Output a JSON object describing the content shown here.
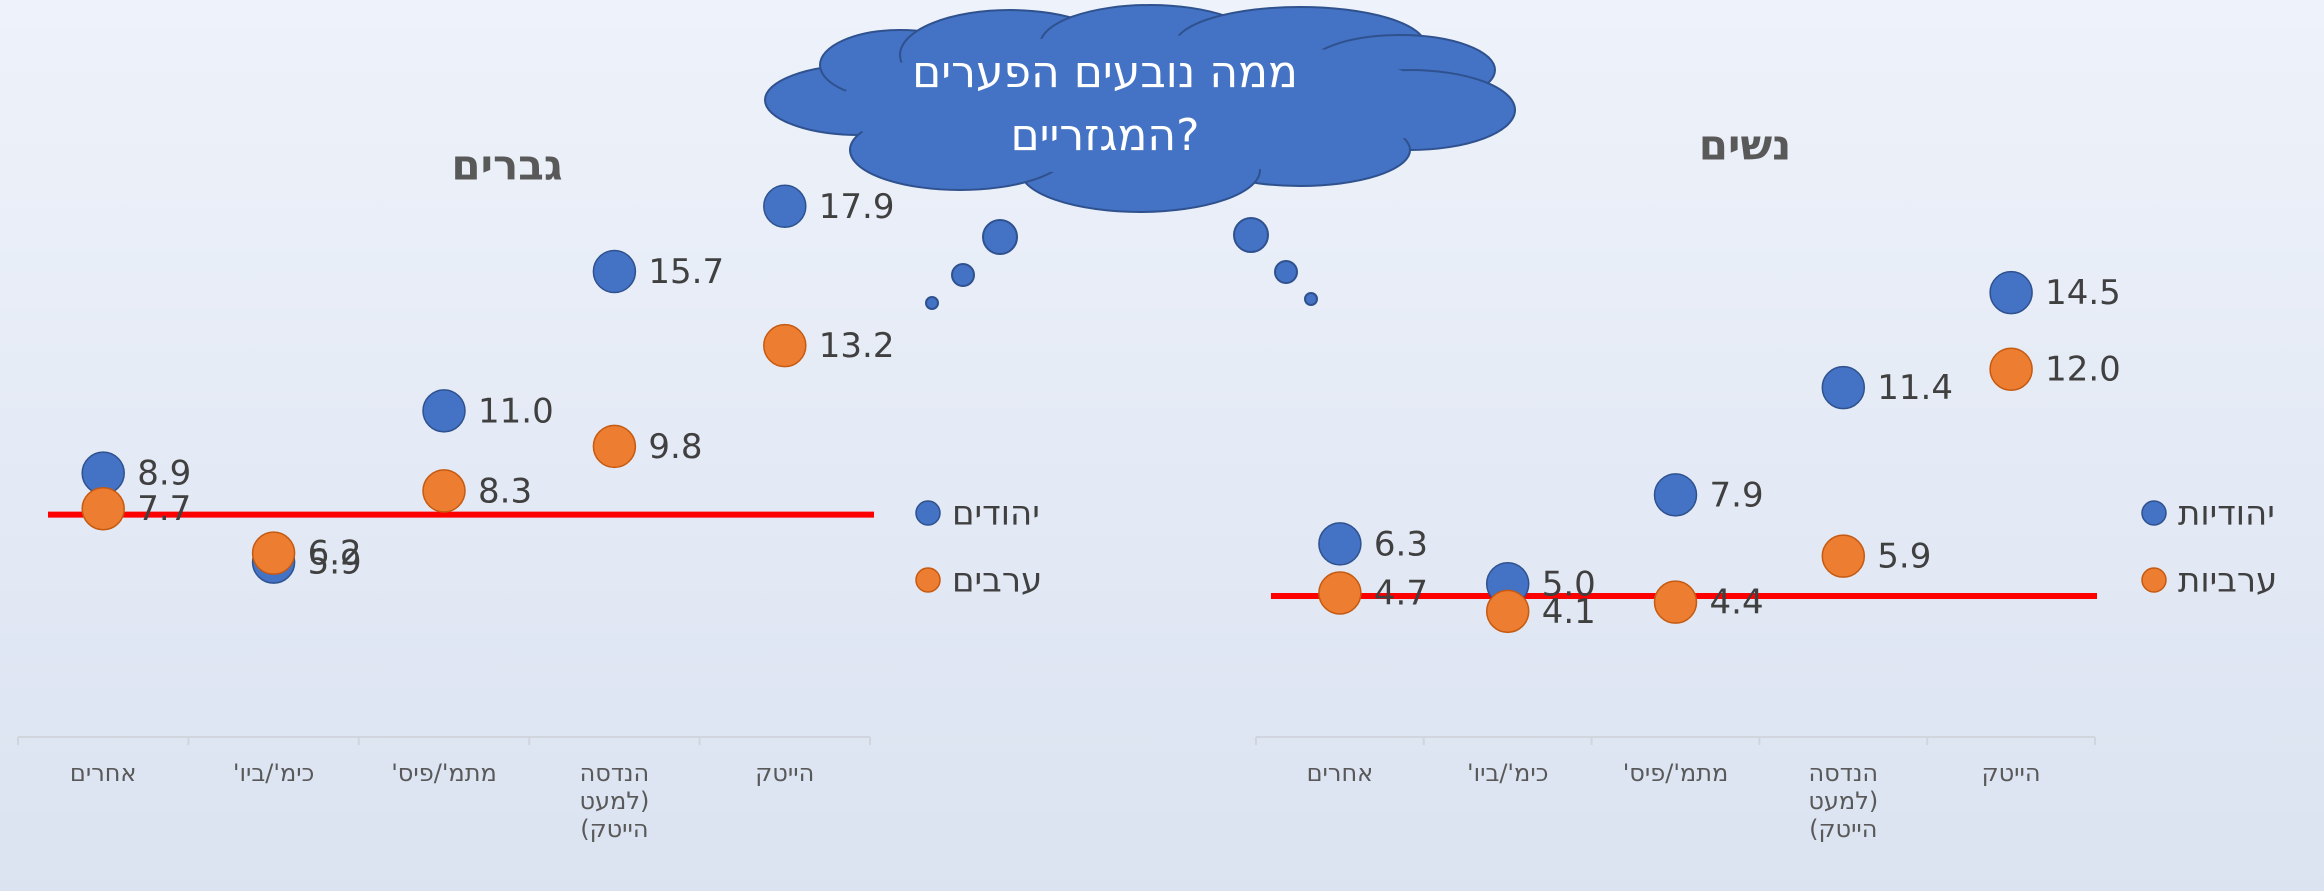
{
  "callout": [
    "ממה נובעים הפערים",
    "המגזריים?"
  ],
  "chart_data": [
    {
      "type": "dot",
      "title": "גברים",
      "categories": [
        "אחרים",
        "כימ'/ביו'",
        "מתמ'/פיס'",
        "הנדסה (למעט הייטק)",
        "הייטק"
      ],
      "series": [
        {
          "name": "יהודים",
          "color": "#4472c4",
          "values": [
            8.9,
            5.9,
            11.0,
            15.7,
            17.9
          ],
          "value_labels": [
            "8.9",
            "5.9",
            "11.0",
            "15.7",
            "17.9"
          ]
        },
        {
          "name": "ערבים",
          "color": "#ed7d31",
          "values": [
            7.7,
            6.2,
            8.3,
            9.8,
            13.2
          ],
          "value_labels": [
            "7.7",
            "6.2",
            "8.3",
            "9.8",
            "13.2"
          ]
        }
      ],
      "ylim": [
        0,
        20
      ],
      "reference_line": 7.5,
      "reference_color": "#ff0000"
    },
    {
      "type": "dot",
      "title": "נשים",
      "categories": [
        "אחרים",
        "כימ'/ביו'",
        "מתמ'/פיס'",
        "הנדסה (למעט הייטק)",
        "הייטק"
      ],
      "series": [
        {
          "name": "יהודיות",
          "color": "#4472c4",
          "values": [
            6.3,
            5.0,
            7.9,
            11.4,
            14.5
          ],
          "value_labels": [
            "6.3",
            "5.0",
            "7.9",
            "11.4",
            "14.5"
          ]
        },
        {
          "name": "ערביות",
          "color": "#ed7d31",
          "values": [
            4.7,
            4.1,
            4.4,
            5.9,
            12.0
          ],
          "value_labels": [
            "4.7",
            "4.1",
            "4.4",
            "5.9",
            "12.0"
          ]
        }
      ],
      "ylim": [
        0,
        20
      ],
      "reference_line": 4.6,
      "reference_color": "#ff0000"
    }
  ]
}
